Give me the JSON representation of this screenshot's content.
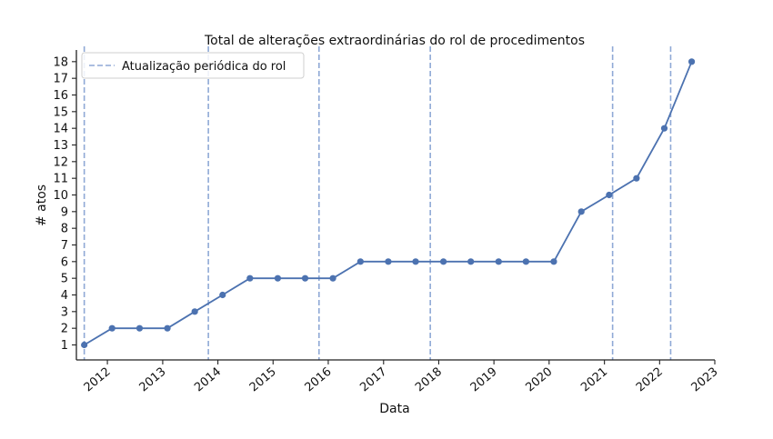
{
  "chart_data": {
    "type": "line",
    "title": "Total de alterações extraordinárias do rol de procedimentos",
    "xlabel": "Data",
    "ylabel": "# atos",
    "x_ticks": [
      "2012",
      "2013",
      "2014",
      "2015",
      "2016",
      "2017",
      "2018",
      "2019",
      "2020",
      "2021",
      "2022",
      "2023"
    ],
    "y_ticks": [
      1,
      2,
      3,
      4,
      5,
      6,
      7,
      8,
      9,
      10,
      11,
      12,
      13,
      14,
      15,
      16,
      17,
      18
    ],
    "xlim": [
      "2011-06-10",
      "2023-01-01"
    ],
    "ylim": [
      0.1,
      18.7
    ],
    "grid": false,
    "legend_position": "top-left",
    "colors": {
      "line": "#4c72b0",
      "vline": "#8fa9d6"
    },
    "series": [
      {
        "x": [
          "2011-08-01",
          "2012-02-01",
          "2012-08-01",
          "2013-02-01",
          "2013-08-01",
          "2014-02-01",
          "2014-08-01",
          "2015-02-01",
          "2015-08-01",
          "2016-02-01",
          "2016-08-01",
          "2017-02-01",
          "2017-08-01",
          "2018-02-01",
          "2018-08-01",
          "2019-02-01",
          "2019-08-01",
          "2020-02-01",
          "2020-08-01",
          "2021-02-01",
          "2021-08-01",
          "2022-02-01",
          "2022-08-01"
        ],
        "values": [
          1,
          2,
          2,
          2,
          3,
          4,
          5,
          5,
          5,
          5,
          6,
          6,
          6,
          6,
          6,
          6,
          6,
          6,
          9,
          10,
          11,
          14,
          18
        ]
      }
    ],
    "vlines": {
      "name": "Atualização periódica do rol",
      "x": [
        "2011-08-01",
        "2013-10-30",
        "2015-11-01",
        "2017-11-06",
        "2021-02-24",
        "2022-03-15"
      ]
    }
  }
}
